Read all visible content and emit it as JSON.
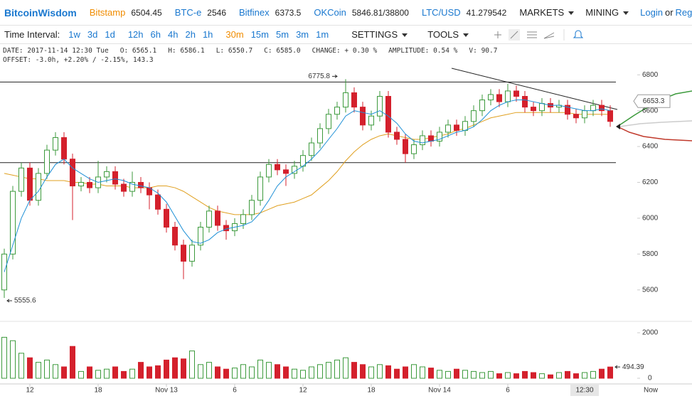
{
  "header": {
    "brand": "BitcoinWisdom",
    "active": "Bitstamp",
    "tickers": [
      {
        "name": "Bitstamp",
        "price": "6504.45"
      },
      {
        "name": "BTC-e",
        "price": "2546"
      },
      {
        "name": "Bitfinex",
        "price": "6373.5"
      },
      {
        "name": "OKCoin",
        "price": "5846.81/38800"
      },
      {
        "name": "LTC/USD",
        "price": "41.279542"
      }
    ],
    "menus": [
      "MARKETS",
      "MINING"
    ],
    "login": "Login",
    "or": "or",
    "register": "Reg"
  },
  "toolbar": {
    "label": "Time Interval:",
    "active": "30m",
    "intervals": [
      [
        "1w",
        "3d",
        "1d"
      ],
      [
        "12h",
        "6h",
        "4h",
        "2h",
        "1h"
      ],
      [
        "30m",
        "15m",
        "5m",
        "3m",
        "1m"
      ]
    ],
    "buttons": [
      "SETTINGS",
      "TOOLS"
    ]
  },
  "info": {
    "line1": [
      "DATE: 2017-11-14 12:30 Tue",
      "O: 6565.1",
      "H: 6586.1",
      "L: 6550.7",
      "C: 6585.0",
      "CHANGE: + 0.30 %",
      "AMPLITUDE: 0.54 %",
      "V: 90.7"
    ],
    "line2": "OFFSET: -3.0h, +2.20% / -2.15%, 143.3"
  },
  "chart_data": {
    "type": "candlestick",
    "up_color": "#3c9a3c",
    "down_color": "#d4202c",
    "ma_fast_color": "#1e90d6",
    "ma_slow_color": "#e0a020",
    "ylim": [
      5480,
      6920
    ],
    "yticks": [
      5600,
      5800,
      6000,
      6200,
      6400,
      6600,
      6800
    ],
    "vlim": [
      0,
      2000
    ],
    "vticks": [
      0,
      2000
    ],
    "hlines": [
      6760,
      6310
    ],
    "price_marker": 6653.3,
    "now_label": "Now",
    "categories": [
      null,
      null,
      null,
      "12",
      null,
      null,
      null,
      null,
      null,
      null,
      null,
      "18",
      null,
      null,
      null,
      null,
      null,
      null,
      null,
      "Nov 13",
      null,
      null,
      null,
      null,
      null,
      null,
      null,
      "6",
      null,
      null,
      null,
      null,
      null,
      null,
      null,
      "12",
      null,
      null,
      null,
      null,
      null,
      null,
      null,
      "18",
      null,
      null,
      null,
      null,
      null,
      null,
      null,
      "Nov 14",
      null,
      null,
      null,
      null,
      null,
      null,
      null,
      "6",
      null,
      null,
      null,
      null,
      null,
      null,
      null,
      null,
      "12:30",
      null,
      null,
      null
    ],
    "open": [
      5600,
      5800,
      6150,
      6280,
      6100,
      6250,
      6380,
      6450,
      6330,
      6180,
      6200,
      6170,
      6230,
      6260,
      6190,
      6150,
      6200,
      6170,
      6130,
      6050,
      5950,
      5850,
      5760,
      5850,
      5950,
      6040,
      5960,
      5930,
      5970,
      6020,
      6100,
      6230,
      6300,
      6270,
      6250,
      6290,
      6350,
      6420,
      6500,
      6580,
      6620,
      6700,
      6620,
      6520,
      6570,
      6680,
      6480,
      6440,
      6360,
      6410,
      6460,
      6430,
      6480,
      6520,
      6490,
      6540,
      6600,
      6660,
      6690,
      6650,
      6710,
      6680,
      6620,
      6600,
      6640,
      6620,
      6630,
      6580,
      6560,
      6600,
      6630,
      6600
    ],
    "high": [
      5830,
      6180,
      6310,
      6310,
      6280,
      6410,
      6480,
      6480,
      6360,
      6230,
      6230,
      6320,
      6290,
      6290,
      6220,
      6260,
      6230,
      6200,
      6160,
      6080,
      5980,
      5880,
      5880,
      5980,
      6070,
      6070,
      5990,
      6000,
      6050,
      6130,
      6260,
      6330,
      6330,
      6300,
      6320,
      6380,
      6450,
      6530,
      6610,
      6650,
      6775.8,
      6730,
      6650,
      6600,
      6710,
      6710,
      6510,
      6470,
      6440,
      6490,
      6490,
      6510,
      6550,
      6550,
      6570,
      6630,
      6690,
      6720,
      6720,
      6750,
      6740,
      6710,
      6650,
      6670,
      6670,
      6660,
      6660,
      6610,
      6630,
      6660,
      6660,
      6630
    ],
    "low": [
      5555.6,
      5770,
      6120,
      6070,
      6070,
      6220,
      6350,
      6300,
      5990,
      6150,
      6140,
      6140,
      6200,
      6160,
      6120,
      6120,
      6140,
      6050,
      6020,
      5920,
      5820,
      5660,
      5730,
      5820,
      5920,
      5930,
      5880,
      5900,
      5940,
      5990,
      6070,
      6200,
      6240,
      6180,
      6220,
      6260,
      6320,
      6390,
      6470,
      6550,
      6590,
      6590,
      6490,
      6490,
      6540,
      6450,
      6410,
      6310,
      6330,
      6380,
      6400,
      6400,
      6450,
      6460,
      6460,
      6510,
      6570,
      6630,
      6620,
      6620,
      6650,
      6590,
      6570,
      6570,
      6590,
      6590,
      6550,
      6530,
      6530,
      6570,
      6570,
      6510
    ],
    "close": [
      5800,
      6150,
      6280,
      6100,
      6250,
      6380,
      6450,
      6330,
      6180,
      6200,
      6170,
      6230,
      6260,
      6190,
      6150,
      6200,
      6170,
      6130,
      6050,
      5950,
      5850,
      5760,
      5850,
      5950,
      6040,
      5960,
      5930,
      5970,
      6020,
      6100,
      6230,
      6300,
      6270,
      6250,
      6290,
      6350,
      6420,
      6500,
      6580,
      6620,
      6700,
      6620,
      6520,
      6570,
      6680,
      6480,
      6440,
      6360,
      6410,
      6460,
      6430,
      6480,
      6520,
      6490,
      6540,
      6600,
      6660,
      6690,
      6650,
      6710,
      6680,
      6620,
      6600,
      6640,
      6620,
      6630,
      6580,
      6560,
      6600,
      6630,
      6600,
      6540
    ],
    "ma_fast": [
      5700,
      5850,
      6000,
      6100,
      6150,
      6230,
      6300,
      6330,
      6280,
      6250,
      6220,
      6200,
      6210,
      6220,
      6210,
      6190,
      6180,
      6170,
      6140,
      6090,
      6010,
      5930,
      5870,
      5860,
      5880,
      5920,
      5940,
      5950,
      5960,
      5980,
      6030,
      6100,
      6180,
      6230,
      6260,
      6290,
      6330,
      6380,
      6440,
      6500,
      6570,
      6600,
      6590,
      6580,
      6600,
      6570,
      6530,
      6470,
      6430,
      6420,
      6430,
      6440,
      6460,
      6480,
      6490,
      6510,
      6550,
      6600,
      6630,
      6650,
      6660,
      6660,
      6650,
      6640,
      6630,
      6630,
      6620,
      6610,
      6600,
      6600,
      6610,
      6600
    ],
    "ma_slow": [
      6250,
      6240,
      6230,
      6220,
      6220,
      6210,
      6210,
      6210,
      6200,
      6200,
      6190,
      6190,
      6180,
      6180,
      6180,
      6170,
      6170,
      6170,
      6180,
      6180,
      6170,
      6150,
      6120,
      6090,
      6060,
      6040,
      6030,
      6020,
      6020,
      6020,
      6030,
      6050,
      6070,
      6080,
      6090,
      6110,
      6130,
      6170,
      6210,
      6260,
      6320,
      6370,
      6410,
      6440,
      6460,
      6470,
      6460,
      6450,
      6440,
      6440,
      6450,
      6460,
      6470,
      6490,
      6500,
      6520,
      6540,
      6560,
      6570,
      6580,
      6590,
      6590,
      6590,
      6590,
      6590,
      6590,
      6590,
      6580,
      6580,
      6580,
      6580,
      6580
    ],
    "volume": [
      1800,
      1650,
      1100,
      900,
      700,
      800,
      600,
      500,
      1400,
      300,
      500,
      350,
      400,
      500,
      300,
      400,
      700,
      500,
      550,
      800,
      900,
      850,
      1200,
      600,
      700,
      500,
      400,
      450,
      600,
      500,
      800,
      700,
      600,
      500,
      400,
      350,
      500,
      600,
      700,
      800,
      900,
      700,
      600,
      500,
      600,
      550,
      400,
      500,
      600,
      500,
      450,
      350,
      300,
      400,
      350,
      300,
      250,
      300,
      200,
      250,
      200,
      300,
      250,
      200,
      150,
      250,
      300,
      200,
      250,
      300,
      400,
      494.39
    ]
  }
}
